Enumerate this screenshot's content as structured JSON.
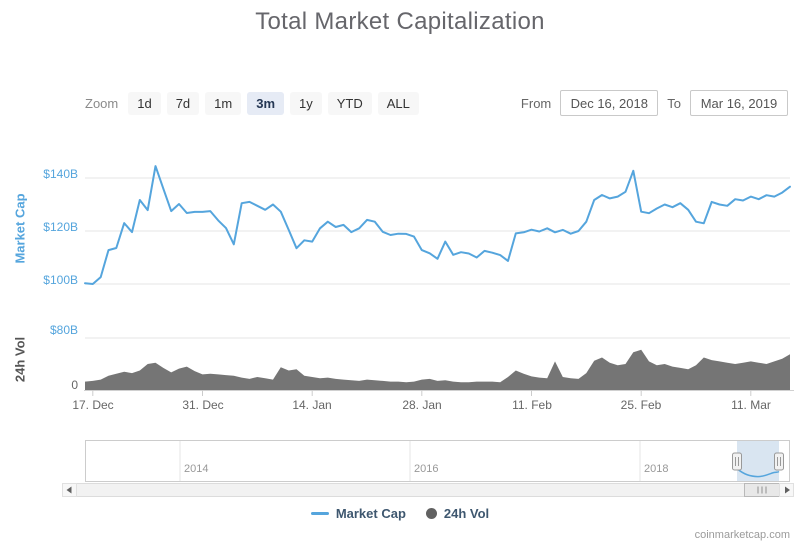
{
  "title": "Total Market Capitalization",
  "watermark": "coinmarketcap.com",
  "toolbar": {
    "zoom_label": "Zoom",
    "buttons": [
      "1d",
      "7d",
      "1m",
      "3m",
      "1y",
      "YTD",
      "ALL"
    ],
    "selected": "3m",
    "from_label": "From",
    "from_value": "Dec 16, 2018",
    "to_label": "To",
    "to_value": "Mar 16, 2019"
  },
  "chart": {
    "y_axis": {
      "title": "Market Cap",
      "labels": [
        "$140B",
        "$120B",
        "$100B"
      ]
    },
    "vol_axis": {
      "title": "24h Vol",
      "labels": [
        "$80B",
        "0"
      ]
    },
    "x_axis": {
      "labels": [
        "17. Dec",
        "31. Dec",
        "14. Jan",
        "28. Jan",
        "11. Feb",
        "25. Feb",
        "11. Mar"
      ]
    },
    "navigator": {
      "year_labels": [
        "2014",
        "2016",
        "2018"
      ]
    }
  },
  "legend": {
    "items": [
      {
        "label": "Market Cap",
        "marker": "line",
        "color": "#55a5dd"
      },
      {
        "label": "24h Vol",
        "marker": "circle",
        "color": "#616161"
      }
    ]
  },
  "colors": {
    "market_cap_line": "#55a5dd",
    "volume_fill": "#757575",
    "axis_label_blue": "#55a5dd",
    "legend_text": "#3e576f",
    "selected_zoom_bg": "#e6ebf5",
    "gridline": "#e6e6e6"
  },
  "chart_data": {
    "type": "line",
    "title": "Total Market Capitalization",
    "x_interval": "1 day",
    "x_range": [
      "2018-12-16",
      "2019-03-16"
    ],
    "x_tick_labels": [
      "17. Dec",
      "31. Dec",
      "14. Jan",
      "28. Jan",
      "11. Feb",
      "25. Feb",
      "11. Mar"
    ],
    "x_tick_day_indices": [
      1,
      15,
      29,
      43,
      57,
      71,
      85
    ],
    "dates": [
      "2018-12-16",
      "2018-12-17",
      "2018-12-18",
      "2018-12-19",
      "2018-12-20",
      "2018-12-21",
      "2018-12-22",
      "2018-12-23",
      "2018-12-24",
      "2018-12-25",
      "2018-12-26",
      "2018-12-27",
      "2018-12-28",
      "2018-12-29",
      "2018-12-30",
      "2018-12-31",
      "2019-01-01",
      "2019-01-02",
      "2019-01-03",
      "2019-01-04",
      "2019-01-05",
      "2019-01-06",
      "2019-01-07",
      "2019-01-08",
      "2019-01-09",
      "2019-01-10",
      "2019-01-11",
      "2019-01-12",
      "2019-01-13",
      "2019-01-14",
      "2019-01-15",
      "2019-01-16",
      "2019-01-17",
      "2019-01-18",
      "2019-01-19",
      "2019-01-20",
      "2019-01-21",
      "2019-01-22",
      "2019-01-23",
      "2019-01-24",
      "2019-01-25",
      "2019-01-26",
      "2019-01-27",
      "2019-01-28",
      "2019-01-29",
      "2019-01-30",
      "2019-01-31",
      "2019-02-01",
      "2019-02-02",
      "2019-02-03",
      "2019-02-04",
      "2019-02-05",
      "2019-02-06",
      "2019-02-07",
      "2019-02-08",
      "2019-02-09",
      "2019-02-10",
      "2019-02-11",
      "2019-02-12",
      "2019-02-13",
      "2019-02-14",
      "2019-02-15",
      "2019-02-16",
      "2019-02-17",
      "2019-02-18",
      "2019-02-19",
      "2019-02-20",
      "2019-02-21",
      "2019-02-22",
      "2019-02-23",
      "2019-02-24",
      "2019-02-25",
      "2019-02-26",
      "2019-02-27",
      "2019-02-28",
      "2019-03-01",
      "2019-03-02",
      "2019-03-03",
      "2019-03-04",
      "2019-03-05",
      "2019-03-06",
      "2019-03-07",
      "2019-03-08",
      "2019-03-09",
      "2019-03-10",
      "2019-03-11",
      "2019-03-12",
      "2019-03-13",
      "2019-03-14",
      "2019-03-15",
      "2019-03-16"
    ],
    "series": [
      {
        "name": "Market Cap",
        "type": "line",
        "unit": "$B",
        "color": "#55a5dd",
        "ylim": [
          95,
          150
        ],
        "y_ticks": [
          100,
          120,
          140
        ],
        "values": [
          100.3,
          100.0,
          102.6,
          112.8,
          113.6,
          123.0,
          119.6,
          131.7,
          127.9,
          144.5,
          136.0,
          127.5,
          130.2,
          126.8,
          127.2,
          127.2,
          127.5,
          124.0,
          121.1,
          115.0,
          130.5,
          131.0,
          129.5,
          128.0,
          130.0,
          127.3,
          120.4,
          113.5,
          116.5,
          116.0,
          121.0,
          123.5,
          121.5,
          122.3,
          119.6,
          121.0,
          124.2,
          123.5,
          119.7,
          118.5,
          119.0,
          118.9,
          117.9,
          112.8,
          111.6,
          109.5,
          116.0,
          111.0,
          112.0,
          111.5,
          110.0,
          112.5,
          111.8,
          110.9,
          108.7,
          119.1,
          119.5,
          120.5,
          119.8,
          121.0,
          119.5,
          120.4,
          119.0,
          120.0,
          123.5,
          131.7,
          133.6,
          132.3,
          133.0,
          134.8,
          142.7,
          127.3,
          126.7,
          128.5,
          130.0,
          129.0,
          130.5,
          128.0,
          123.5,
          122.9,
          131.0,
          130.0,
          129.5,
          132.0,
          131.5,
          133.0,
          132.0,
          133.5,
          133.0,
          134.5,
          136.7
        ]
      },
      {
        "name": "24h Vol",
        "type": "area",
        "unit": "$B",
        "color": "#757575",
        "ylim": [
          0,
          80
        ],
        "y_ticks": [
          0,
          80
        ],
        "values": [
          13,
          14,
          16,
          22,
          25,
          28,
          26,
          30,
          40,
          42,
          34,
          27,
          33,
          36,
          29,
          24,
          25,
          24,
          23,
          22,
          19,
          17,
          20,
          18,
          16,
          35,
          30,
          32,
          22,
          20,
          18,
          19,
          17,
          16,
          15,
          14,
          16,
          15,
          14,
          13,
          13,
          12,
          13,
          16,
          17,
          14,
          15,
          13,
          12,
          12,
          13,
          13,
          13,
          12,
          20,
          30,
          25,
          21,
          19,
          18,
          44,
          20,
          18,
          17,
          26,
          45,
          50,
          42,
          38,
          40,
          58,
          62,
          44,
          38,
          40,
          36,
          34,
          32,
          38,
          50,
          46,
          44,
          42,
          40,
          42,
          44,
          42,
          40,
          44,
          48,
          55
        ]
      }
    ],
    "navigator": {
      "year_labels": [
        "2014",
        "2016",
        "2018"
      ],
      "selected_range": [
        "2018-12-16",
        "2019-03-16"
      ]
    },
    "legend_position": "bottom",
    "grid": "horizontal"
  }
}
